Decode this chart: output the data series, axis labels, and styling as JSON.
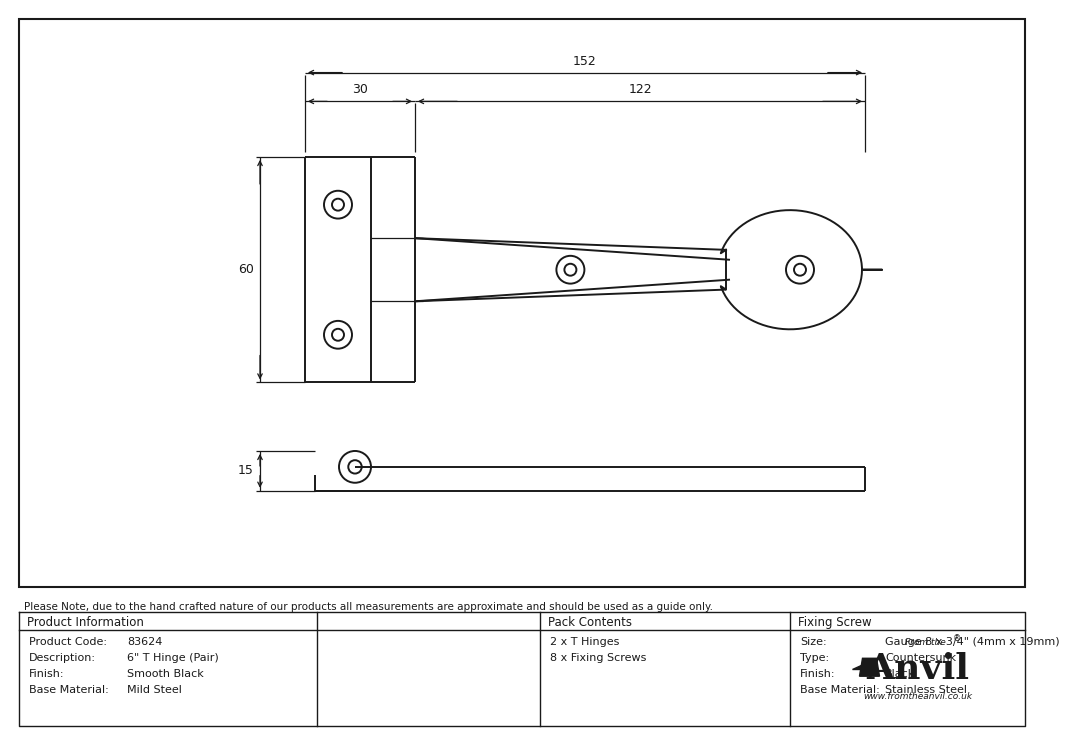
{
  "bg_color": "#ffffff",
  "drawing_bg": "#ffffff",
  "line_color": "#1a1a1a",
  "text_color": "#1a1a1a",
  "note_text": "Please Note, due to the hand crafted nature of our products all measurements are approximate and should be used as a guide only.",
  "product_info_keys": [
    "Product Code:",
    "Description:",
    "Finish:",
    "Base Material:"
  ],
  "product_info_vals": [
    "83624",
    "6\" T Hinge (Pair)",
    "Smooth Black",
    "Mild Steel"
  ],
  "pack_contents": [
    "2 x T Hinges",
    "8 x Fixing Screws"
  ],
  "fixing_screw_keys": [
    "Size:",
    "Type:",
    "Finish:",
    "Base Material:"
  ],
  "fixing_screw_vals": [
    "Gauge 8 x 3/4\" (4mm x 19mm)",
    "Countersunk",
    "Black",
    "Stainless Steel"
  ],
  "dim_152": "152",
  "dim_30": "30",
  "dim_122": "122",
  "dim_60": "60",
  "dim_15": "15"
}
